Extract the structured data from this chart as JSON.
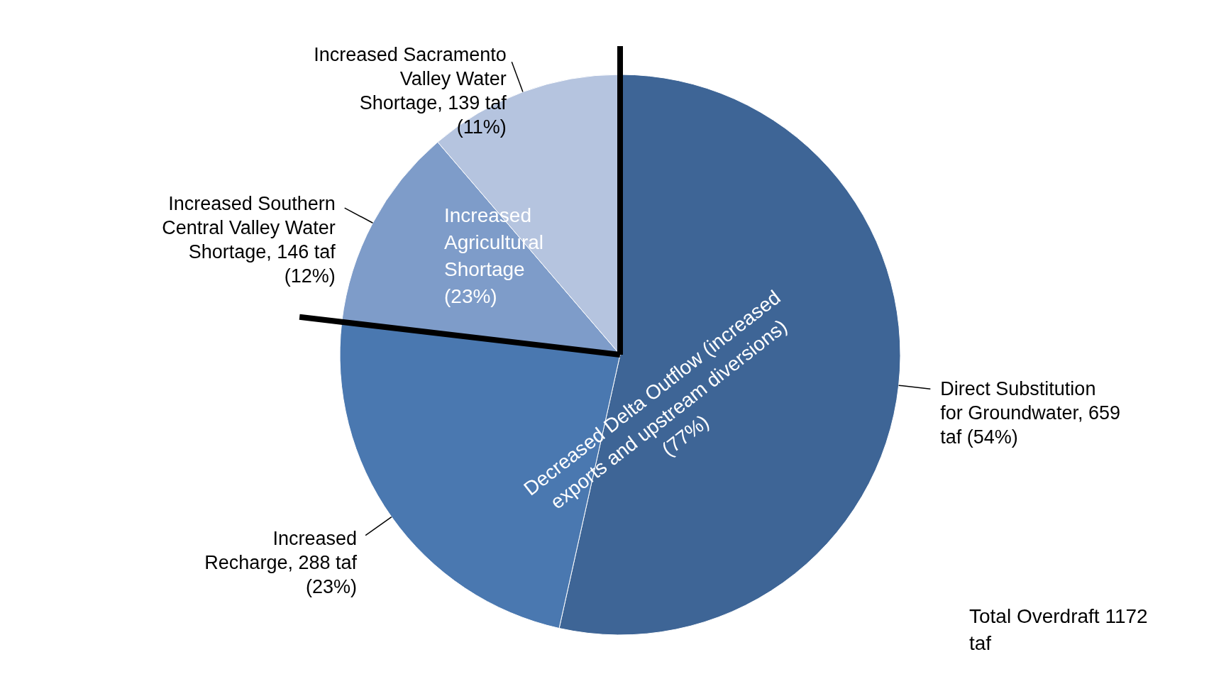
{
  "chart_data": {
    "type": "pie",
    "categories": [
      "Direct Substitution for Groundwater",
      "Increased Recharge",
      "Increased Southern Central Valley Water Shortage",
      "Increased Sacramento Valley Water Shortage"
    ],
    "values": [
      659,
      288,
      146,
      139
    ],
    "value_labels": [
      "659 taf (54%)",
      "288 taf (23%)",
      "146 taf (12%)",
      "139 taf (11%)"
    ],
    "colors": [
      "#3e6596",
      "#4a78b0",
      "#7e9cc9",
      "#b5c4df"
    ],
    "annotations": [
      "Increased Agricultural Shortage (23%)",
      "Decreased Delta Outflow (increased exports and upstream diversions) (77%)",
      "Total Overdraft 1172 taf"
    ]
  }
}
